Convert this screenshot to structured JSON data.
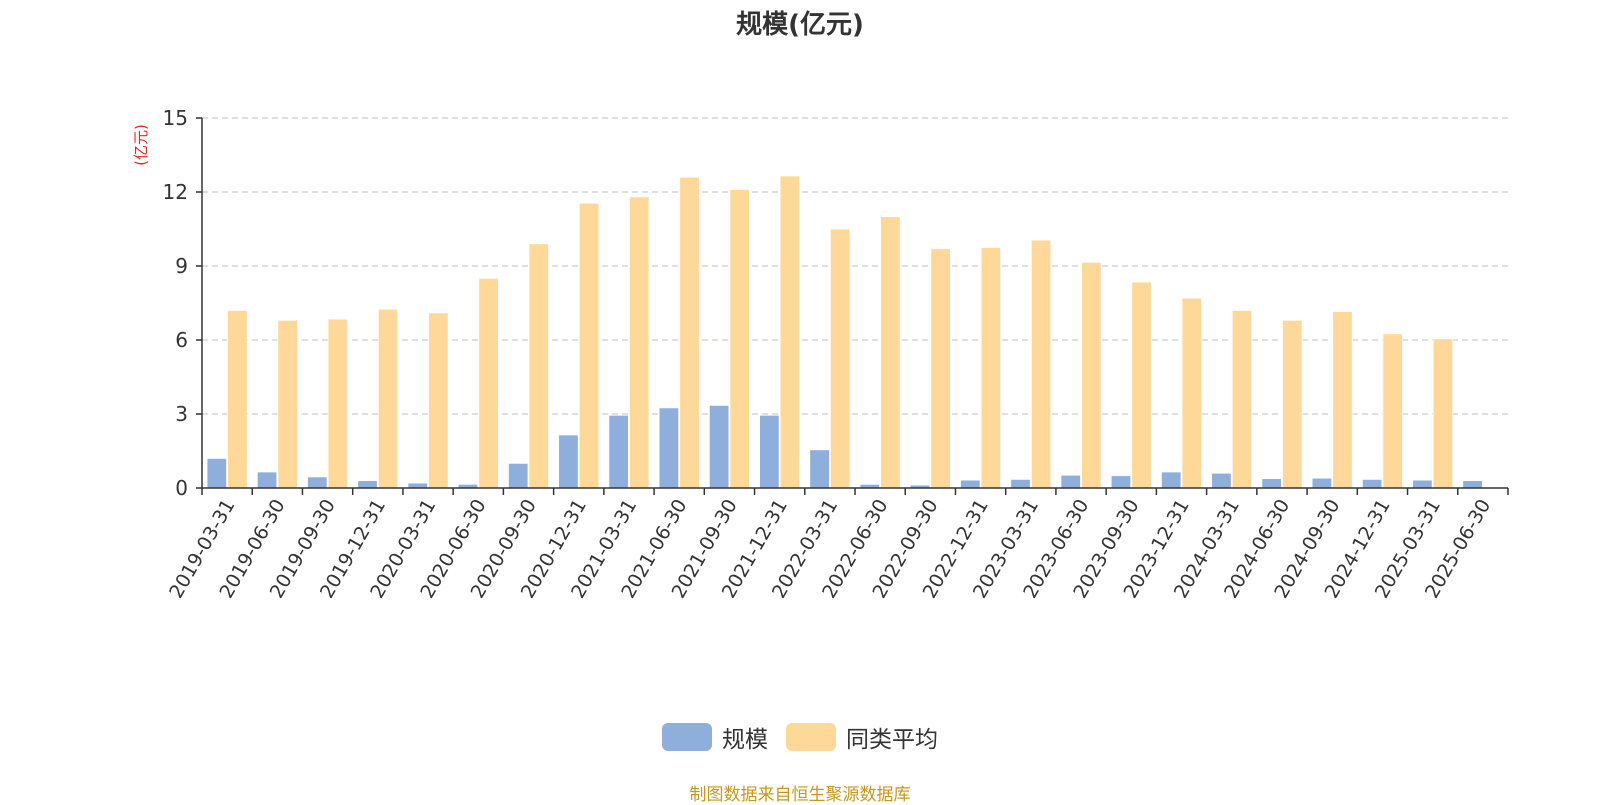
{
  "chart_data": {
    "type": "bar",
    "title": "规模(亿元)",
    "ylabel": "(亿元)",
    "xlabel": "",
    "ylim": [
      0,
      15
    ],
    "yticks": [
      0,
      3,
      6,
      9,
      12,
      15
    ],
    "grid": true,
    "legend_position": "bottom",
    "categories": [
      "2019-03-31",
      "2019-06-30",
      "2019-09-30",
      "2019-12-31",
      "2020-03-31",
      "2020-06-30",
      "2020-09-30",
      "2020-12-31",
      "2021-03-31",
      "2021-06-30",
      "2021-09-30",
      "2021-12-31",
      "2022-03-31",
      "2022-06-30",
      "2022-09-30",
      "2022-12-31",
      "2023-03-31",
      "2023-06-30",
      "2023-09-30",
      "2023-12-31",
      "2024-03-31",
      "2024-06-30",
      "2024-09-30",
      "2024-12-31",
      "2025-03-31",
      "2025-06-30"
    ],
    "series": [
      {
        "name": "规模",
        "color": "#8eaedc",
        "values": [
          1.2,
          0.65,
          0.45,
          0.3,
          0.2,
          0.15,
          1.0,
          2.15,
          2.95,
          3.25,
          3.35,
          2.95,
          1.55,
          0.15,
          0.12,
          0.32,
          0.35,
          0.52,
          0.5,
          0.65,
          0.6,
          0.38,
          0.4,
          0.35,
          0.32,
          0.3
        ]
      },
      {
        "name": "同类平均",
        "color": "#fed898",
        "values": [
          7.2,
          6.8,
          6.85,
          7.25,
          7.1,
          8.5,
          9.9,
          11.55,
          11.8,
          12.6,
          12.1,
          12.65,
          10.5,
          11.0,
          9.7,
          9.75,
          10.05,
          9.15,
          8.35,
          7.7,
          7.2,
          6.8,
          7.15,
          6.25,
          6.05,
          null
        ]
      }
    ]
  },
  "source_note": "制图数据来自恒生聚源数据库"
}
